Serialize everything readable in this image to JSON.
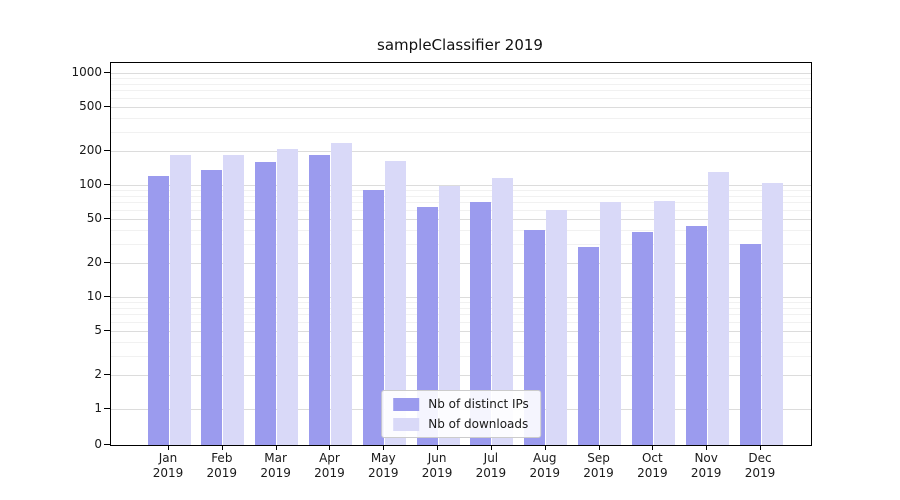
{
  "chart_data": {
    "type": "bar",
    "title": "sampleClassifier 2019",
    "categories": [
      "Jan 2019",
      "Feb 2019",
      "Mar 2019",
      "Apr 2019",
      "May 2019",
      "Jun 2019",
      "Jul 2019",
      "Aug 2019",
      "Sep 2019",
      "Oct 2019",
      "Nov 2019",
      "Dec 2019"
    ],
    "series": [
      {
        "name": "Nb of distinct IPs",
        "color": "#9b9bee",
        "values": [
          120,
          135,
          160,
          185,
          90,
          63,
          70,
          40,
          28,
          38,
          43,
          30
        ]
      },
      {
        "name": "Nb of downloads",
        "color": "#d9d9f8",
        "values": [
          185,
          185,
          210,
          235,
          165,
          97,
          115,
          60,
          70,
          72,
          130,
          105
        ]
      }
    ],
    "yscale": "symlog",
    "y_ticks": [
      0,
      1,
      2,
      5,
      10,
      20,
      50,
      100,
      200,
      500,
      1000
    ],
    "ylim": [
      0,
      1200
    ],
    "xlabel": "",
    "ylabel": "",
    "grid": true,
    "legend_position": "lower center"
  }
}
